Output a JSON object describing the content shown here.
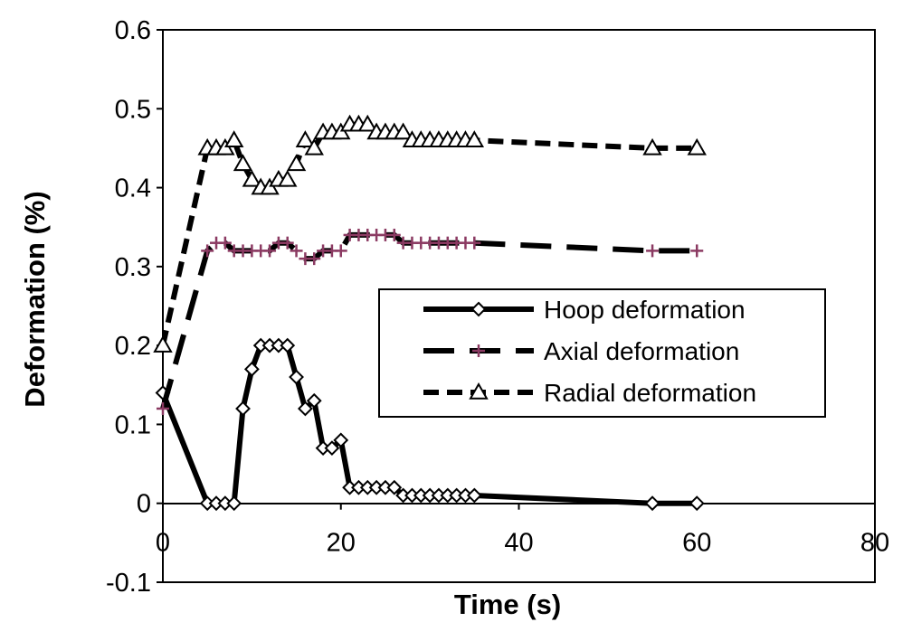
{
  "chart_data": {
    "type": "line",
    "title": "",
    "xlabel": "Time (s)",
    "ylabel": "Deformation (%)",
    "xlim": [
      0,
      80
    ],
    "ylim": [
      -0.1,
      0.6
    ],
    "xticks": [
      "0",
      "20",
      "40",
      "60",
      "80"
    ],
    "yticks": [
      "-0.1",
      "0",
      "0.1",
      "0.2",
      "0.3",
      "0.4",
      "0.5",
      "0.6"
    ],
    "grid": false,
    "legend_position": "right",
    "series": [
      {
        "name": "Hoop deformation",
        "color": "#000000",
        "line_style": "solid",
        "marker": "diamond",
        "points": [
          [
            0,
            0.14
          ],
          [
            5,
            0
          ],
          [
            6,
            0
          ],
          [
            7,
            0
          ],
          [
            8,
            0
          ],
          [
            9,
            0.12
          ],
          [
            10,
            0.17
          ],
          [
            11,
            0.2
          ],
          [
            12,
            0.2
          ],
          [
            13,
            0.2
          ],
          [
            14,
            0.2
          ],
          [
            15,
            0.16
          ],
          [
            16,
            0.12
          ],
          [
            17,
            0.13
          ],
          [
            18,
            0.07
          ],
          [
            19,
            0.07
          ],
          [
            20,
            0.08
          ],
          [
            21,
            0.02
          ],
          [
            22,
            0.02
          ],
          [
            23,
            0.02
          ],
          [
            24,
            0.02
          ],
          [
            25,
            0.02
          ],
          [
            26,
            0.02
          ],
          [
            27,
            0.01
          ],
          [
            28,
            0.01
          ],
          [
            29,
            0.01
          ],
          [
            30,
            0.01
          ],
          [
            31,
            0.01
          ],
          [
            32,
            0.01
          ],
          [
            33,
            0.01
          ],
          [
            34,
            0.01
          ],
          [
            35,
            0.01
          ],
          [
            55,
            0
          ],
          [
            60,
            0
          ]
        ]
      },
      {
        "name": "Axial deformation",
        "color": "#000000",
        "marker_color": "#8b3a62",
        "line_style": "long-dash",
        "marker": "plus",
        "points": [
          [
            0,
            0.12
          ],
          [
            5,
            0.32
          ],
          [
            6,
            0.33
          ],
          [
            7,
            0.33
          ],
          [
            8,
            0.32
          ],
          [
            9,
            0.32
          ],
          [
            10,
            0.32
          ],
          [
            11,
            0.32
          ],
          [
            12,
            0.32
          ],
          [
            13,
            0.33
          ],
          [
            14,
            0.33
          ],
          [
            15,
            0.32
          ],
          [
            16,
            0.31
          ],
          [
            17,
            0.31
          ],
          [
            18,
            0.32
          ],
          [
            19,
            0.32
          ],
          [
            20,
            0.32
          ],
          [
            21,
            0.34
          ],
          [
            22,
            0.34
          ],
          [
            23,
            0.34
          ],
          [
            24,
            0.34
          ],
          [
            25,
            0.34
          ],
          [
            26,
            0.34
          ],
          [
            27,
            0.33
          ],
          [
            28,
            0.33
          ],
          [
            29,
            0.33
          ],
          [
            30,
            0.33
          ],
          [
            31,
            0.33
          ],
          [
            32,
            0.33
          ],
          [
            33,
            0.33
          ],
          [
            34,
            0.33
          ],
          [
            35,
            0.33
          ],
          [
            55,
            0.32
          ],
          [
            60,
            0.32
          ]
        ]
      },
      {
        "name": "Radial deformation",
        "color": "#000000",
        "line_style": "short-dash",
        "marker": "triangle",
        "points": [
          [
            0,
            0.2
          ],
          [
            5,
            0.45
          ],
          [
            6,
            0.45
          ],
          [
            7,
            0.45
          ],
          [
            8,
            0.46
          ],
          [
            9,
            0.43
          ],
          [
            10,
            0.41
          ],
          [
            11,
            0.4
          ],
          [
            12,
            0.4
          ],
          [
            13,
            0.41
          ],
          [
            14,
            0.41
          ],
          [
            15,
            0.43
          ],
          [
            16,
            0.46
          ],
          [
            17,
            0.45
          ],
          [
            18,
            0.47
          ],
          [
            19,
            0.47
          ],
          [
            20,
            0.47
          ],
          [
            21,
            0.48
          ],
          [
            22,
            0.48
          ],
          [
            23,
            0.48
          ],
          [
            24,
            0.47
          ],
          [
            25,
            0.47
          ],
          [
            26,
            0.47
          ],
          [
            27,
            0.47
          ],
          [
            28,
            0.46
          ],
          [
            29,
            0.46
          ],
          [
            30,
            0.46
          ],
          [
            31,
            0.46
          ],
          [
            32,
            0.46
          ],
          [
            33,
            0.46
          ],
          [
            34,
            0.46
          ],
          [
            35,
            0.46
          ],
          [
            55,
            0.45
          ],
          [
            60,
            0.45
          ]
        ]
      }
    ]
  }
}
